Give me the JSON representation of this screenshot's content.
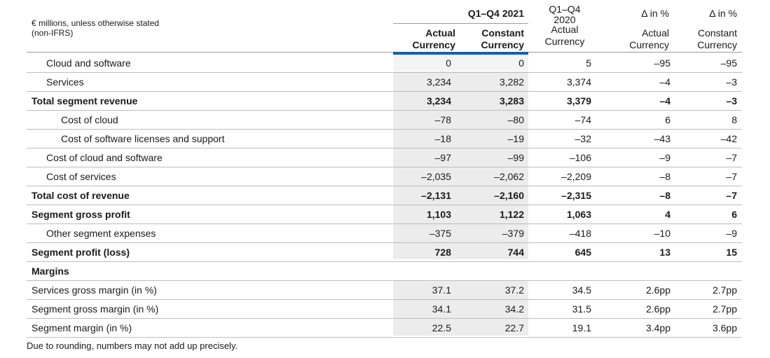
{
  "header": {
    "unit_note_line1": "€ millions, unless otherwise stated",
    "unit_note_line2": "(non-IFRS)",
    "group_2021": "Q1–Q4 2021",
    "col_2020_line1": "Q1–Q4",
    "col_2020_line2": "2020",
    "delta1_top": "Δ in %",
    "delta2_top": "Δ in %",
    "c1_line1": "Actual",
    "c1_line2": "Currency",
    "c2_line1": "Constant",
    "c2_line2": "Currency",
    "c3_line2": "Actual",
    "c3_line3": "Currency",
    "c4_line1": "Actual",
    "c4_line2": "Currency",
    "c5_line1": "Constant",
    "c5_line2": "Currency"
  },
  "rows": [
    {
      "label": "Cloud and software",
      "v": [
        "0",
        "0",
        "5",
        "–95",
        "–95"
      ]
    },
    {
      "label": "Services",
      "v": [
        "3,234",
        "3,282",
        "3,374",
        "–4",
        "–3"
      ]
    },
    {
      "label": "Total segment revenue",
      "v": [
        "3,234",
        "3,283",
        "3,379",
        "–4",
        "–3"
      ]
    },
    {
      "label": "Cost of cloud",
      "v": [
        "–78",
        "–80",
        "–74",
        "6",
        "8"
      ]
    },
    {
      "label": "Cost of software licenses and support",
      "v": [
        "–18",
        "–19",
        "–32",
        "–43",
        "–42"
      ]
    },
    {
      "label": "Cost of cloud and software",
      "v": [
        "–97",
        "–99",
        "–106",
        "–9",
        "–7"
      ]
    },
    {
      "label": "Cost of services",
      "v": [
        "–2,035",
        "–2,062",
        "–2,209",
        "–8",
        "–7"
      ]
    },
    {
      "label": "Total cost of revenue",
      "v": [
        "–2,131",
        "–2,160",
        "–2,315",
        "–8",
        "–7"
      ]
    },
    {
      "label": "Segment gross profit",
      "v": [
        "1,103",
        "1,122",
        "1,063",
        "4",
        "6"
      ]
    },
    {
      "label": "Other segment expenses",
      "v": [
        "–375",
        "–379",
        "–418",
        "–10",
        "–9"
      ]
    },
    {
      "label": "Segment profit (loss)",
      "v": [
        "728",
        "744",
        "645",
        "13",
        "15"
      ]
    },
    {
      "label": "Margins",
      "v": [
        "",
        "",
        "",
        "",
        ""
      ]
    },
    {
      "label": "Services gross margin (in %)",
      "v": [
        "37.1",
        "37.2",
        "34.5",
        "2.6pp",
        "2.7pp"
      ]
    },
    {
      "label": "Segment gross margin (in %)",
      "v": [
        "34.1",
        "34.2",
        "31.5",
        "2.6pp",
        "2.7pp"
      ]
    },
    {
      "label": "Segment margin (in %)",
      "v": [
        "22.5",
        "22.7",
        "19.1",
        "3.4pp",
        "3.6pp"
      ]
    }
  ],
  "footnote": "Due to rounding, numbers may not add up precisely."
}
